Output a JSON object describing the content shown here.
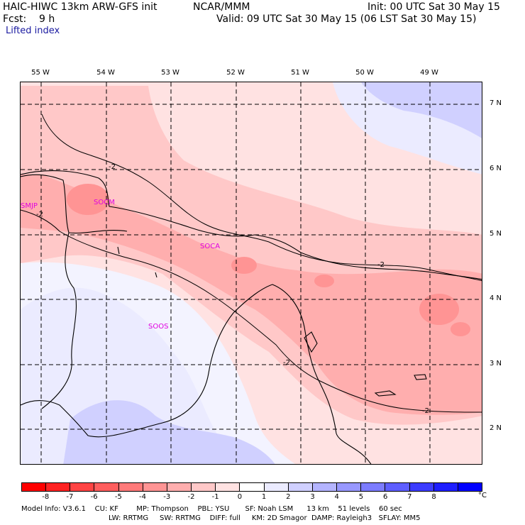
{
  "header": {
    "title": "HAIC-HIWC 13km ARW-GFS init",
    "org": "NCAR/MMM",
    "init": "Init: 00 UTC Sat 30 May 15",
    "fcst": "Fcst:    9 h",
    "valid": "Valid: 09 UTC Sat 30 May 15 (06 LST Sat 30 May 15)",
    "field": "Lifted index"
  },
  "map": {
    "lon_labels": [
      "55 W",
      "54 W",
      "53 W",
      "52 W",
      "51 W",
      "50 W",
      "49 W"
    ],
    "lat_labels": [
      "7 N",
      "6 N",
      "5 N",
      "4 N",
      "3 N",
      "2 N"
    ],
    "stations": [
      "SMJP",
      "SOCM",
      "SOCA",
      "SOOS"
    ],
    "contour_label": "-2"
  },
  "colorbar": {
    "colors": [
      "#ff0000",
      "#ff2222",
      "#ff4444",
      "#ff5e5e",
      "#ff7a7a",
      "#ff9494",
      "#ffaeae",
      "#ffc8c8",
      "#ffe2e2",
      "#ffffff",
      "#ebebff",
      "#d0d0ff",
      "#b4b4ff",
      "#9898ff",
      "#7c7cff",
      "#5e5eff",
      "#3c3cff",
      "#1e1eff",
      "#0000ff"
    ],
    "ticks": [
      "-8",
      "-7",
      "-6",
      "-5",
      "-4",
      "-3",
      "-2",
      "-1",
      "0",
      "1",
      "2",
      "3",
      "4",
      "5",
      "6",
      "7",
      "8"
    ],
    "unit": "°C"
  },
  "model_info": {
    "line1": "Model Info: V3.6.1    CU: KF        MP: Thompson    PBL: YSU       SF: Noah LSM      13 km    51 levels    60 sec",
    "line2": "LW: RRTMG     SW: RRTMG    DIFF: full     KM: 2D Smagor  DAMP: Rayleigh3   SFLAY: MM5"
  }
}
